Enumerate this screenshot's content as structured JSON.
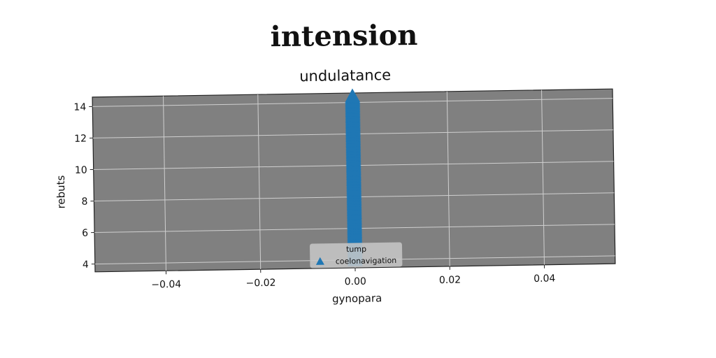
{
  "page": {
    "title": "intension"
  },
  "chart_data": {
    "type": "scatter",
    "title": "undulatance",
    "xlabel": "gynopara",
    "ylabel": "rebuts",
    "xlim": [
      -0.055,
      0.055
    ],
    "ylim": [
      3.5,
      14.6
    ],
    "xticks": [
      -0.04,
      -0.02,
      0.0,
      0.02,
      0.04
    ],
    "xtick_labels": [
      "−0.04",
      "−0.02",
      "0.00",
      "0.02",
      "0.04"
    ],
    "yticks": [
      4,
      6,
      8,
      10,
      12,
      14
    ],
    "ytick_labels": [
      "4",
      "6",
      "8",
      "10",
      "12",
      "14"
    ],
    "grid": true,
    "legend": {
      "title": "tump",
      "placement": "lower center"
    },
    "series": [
      {
        "name": "coelonavigation",
        "marker": "triangle",
        "color": "#1f77b4",
        "x": [
          0,
          0,
          0,
          0,
          0,
          0,
          0,
          0,
          0,
          0,
          0,
          0,
          0,
          0,
          0,
          0,
          0,
          0,
          0,
          0,
          0,
          0,
          0,
          0,
          0,
          0,
          0,
          0,
          0,
          0,
          0,
          0,
          0,
          0,
          0,
          0,
          0,
          0,
          0,
          0,
          0,
          0,
          0,
          0,
          0,
          0,
          0,
          0,
          0,
          0,
          0,
          0,
          0,
          0,
          0,
          0,
          0,
          0,
          0,
          0,
          0,
          0,
          0,
          0,
          0,
          0,
          0,
          0,
          0,
          0,
          0,
          0,
          0,
          0,
          0,
          0,
          0,
          0,
          0,
          0,
          0,
          0,
          0,
          0,
          0,
          0,
          0,
          0,
          0,
          0,
          0,
          0,
          0,
          0,
          0,
          0,
          0,
          0,
          0,
          0,
          0,
          0,
          0,
          0,
          0
        ],
        "y": [
          4.0,
          4.1,
          4.2,
          4.3,
          4.4,
          4.5,
          4.6,
          4.7,
          4.8,
          4.9,
          5.0,
          5.1,
          5.2,
          5.3,
          5.4,
          5.5,
          5.6,
          5.7,
          5.8,
          5.9,
          6.0,
          6.1,
          6.2,
          6.3,
          6.4,
          6.5,
          6.6,
          6.7,
          6.8,
          6.9,
          7.0,
          7.1,
          7.2,
          7.3,
          7.4,
          7.5,
          7.6,
          7.7,
          7.8,
          7.9,
          8.0,
          8.1,
          8.2,
          8.3,
          8.4,
          8.5,
          8.6,
          8.7,
          8.8,
          8.9,
          9.0,
          9.1,
          9.2,
          9.3,
          9.4,
          9.5,
          9.6,
          9.7,
          9.8,
          9.9,
          10.0,
          10.1,
          10.2,
          10.3,
          10.4,
          10.5,
          10.6,
          10.7,
          10.8,
          10.9,
          11.0,
          11.1,
          11.2,
          11.3,
          11.4,
          11.5,
          11.6,
          11.7,
          11.8,
          11.9,
          12.0,
          12.1,
          12.2,
          12.3,
          12.4,
          12.5,
          12.6,
          12.7,
          12.8,
          12.9,
          13.0,
          13.1,
          13.2,
          13.3,
          13.4,
          13.5,
          13.6,
          13.7,
          13.8,
          13.9,
          14.0,
          14.1,
          14.2,
          14.3,
          14.4
        ]
      }
    ]
  },
  "colors": {
    "plot_bg": "#808080",
    "grid": "#d0d0d0",
    "series": "#1f77b4"
  }
}
